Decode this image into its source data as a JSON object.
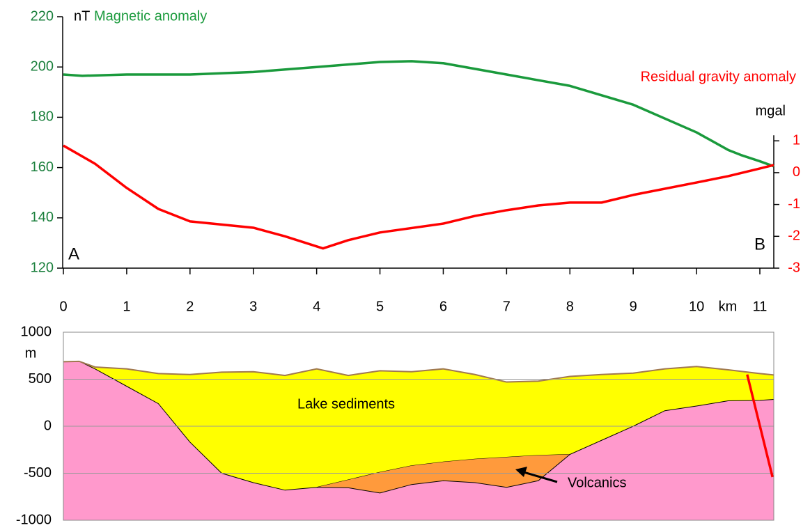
{
  "chart_data": [
    {
      "type": "line",
      "ylabel": "nT",
      "y2label": "mgal",
      "xlabel": "km",
      "xlim": [
        0,
        11.22
      ],
      "xticks": [
        0,
        1,
        2,
        3,
        4,
        5,
        6,
        7,
        8,
        9,
        10,
        11
      ],
      "ylim": [
        120,
        220
      ],
      "yticks": [
        120,
        140,
        160,
        180,
        200,
        220
      ],
      "ytick_color": "#1a7f3c",
      "y2lim": [
        -3,
        4.9
      ],
      "y2ticks": [
        -3,
        -2,
        -1,
        0,
        1
      ],
      "y2tick_color": "#ff0000",
      "annotations": [
        "A",
        "B"
      ],
      "series": [
        {
          "name": "Magnetic anomaly",
          "color": "#1a9a3c",
          "x": [
            0,
            0.3,
            1,
            2,
            3,
            4,
            5,
            5.5,
            6,
            7,
            8,
            9,
            10,
            10.5,
            10.7,
            11,
            11.22
          ],
          "values": [
            197,
            196.5,
            197,
            197,
            198,
            200,
            202,
            202.3,
            201.5,
            197,
            192.5,
            185,
            174,
            167,
            165,
            162.5,
            160.5
          ]
        },
        {
          "name": "Residual gravity anomaly",
          "color": "#ff0000",
          "axis": "y2",
          "x": [
            0,
            0.5,
            1,
            1.5,
            2,
            3,
            3.5,
            4.1,
            4.5,
            5,
            6,
            6.5,
            7,
            7.5,
            8,
            8.5,
            9,
            10,
            10.5,
            11,
            11.22
          ],
          "values": [
            0.85,
            0.28,
            -0.48,
            -1.14,
            -1.53,
            -1.73,
            -2.0,
            -2.38,
            -2.12,
            -1.88,
            -1.6,
            -1.36,
            -1.18,
            -1.03,
            -0.94,
            -0.94,
            -0.7,
            -0.31,
            -0.11,
            0.13,
            0.24
          ]
        }
      ]
    },
    {
      "type": "section",
      "ylabel": "m",
      "ylim": [
        -1000,
        1000
      ],
      "yticks": [
        -1000,
        -500,
        0,
        500,
        1000
      ],
      "grid": true,
      "xlim": [
        0,
        11.22
      ],
      "basement_color": "#ff99cc",
      "surface_color": "#a07850",
      "x": [
        0,
        0.25,
        0.5,
        1,
        1.5,
        2,
        2.5,
        3,
        3.5,
        4,
        4.5,
        5,
        5.5,
        6,
        6.5,
        7,
        7.5,
        8,
        8.5,
        9,
        9.5,
        10,
        10.5,
        11,
        11.22
      ],
      "surface": [
        686,
        690,
        630,
        610,
        560,
        550,
        575,
        580,
        540,
        610,
        540,
        590,
        580,
        610,
        550,
        470,
        480,
        530,
        550,
        565,
        610,
        635,
        600,
        560,
        545
      ],
      "layers": [
        {
          "name": "Lake sediments",
          "color": "#ffff00",
          "bottom": [
            686,
            690,
            610,
            425,
            240,
            -170,
            -500,
            -600,
            -680,
            -650,
            -570,
            -490,
            -420,
            -380,
            -350,
            -330,
            -310,
            -300,
            -150,
            0,
            165,
            215,
            270,
            275,
            285
          ]
        },
        {
          "name": "Volcanics",
          "color": "#ff9a3c",
          "bottom": [
            null,
            null,
            null,
            null,
            null,
            null,
            null,
            null,
            null,
            -650,
            -655,
            -710,
            -620,
            -580,
            -600,
            -650,
            -580,
            -300,
            null,
            null,
            null,
            null,
            null,
            null,
            null
          ]
        }
      ],
      "fault": {
        "color": "#ff0000",
        "x": [
          10.8,
          11.2
        ],
        "y": [
          550,
          -540
        ]
      }
    }
  ]
}
